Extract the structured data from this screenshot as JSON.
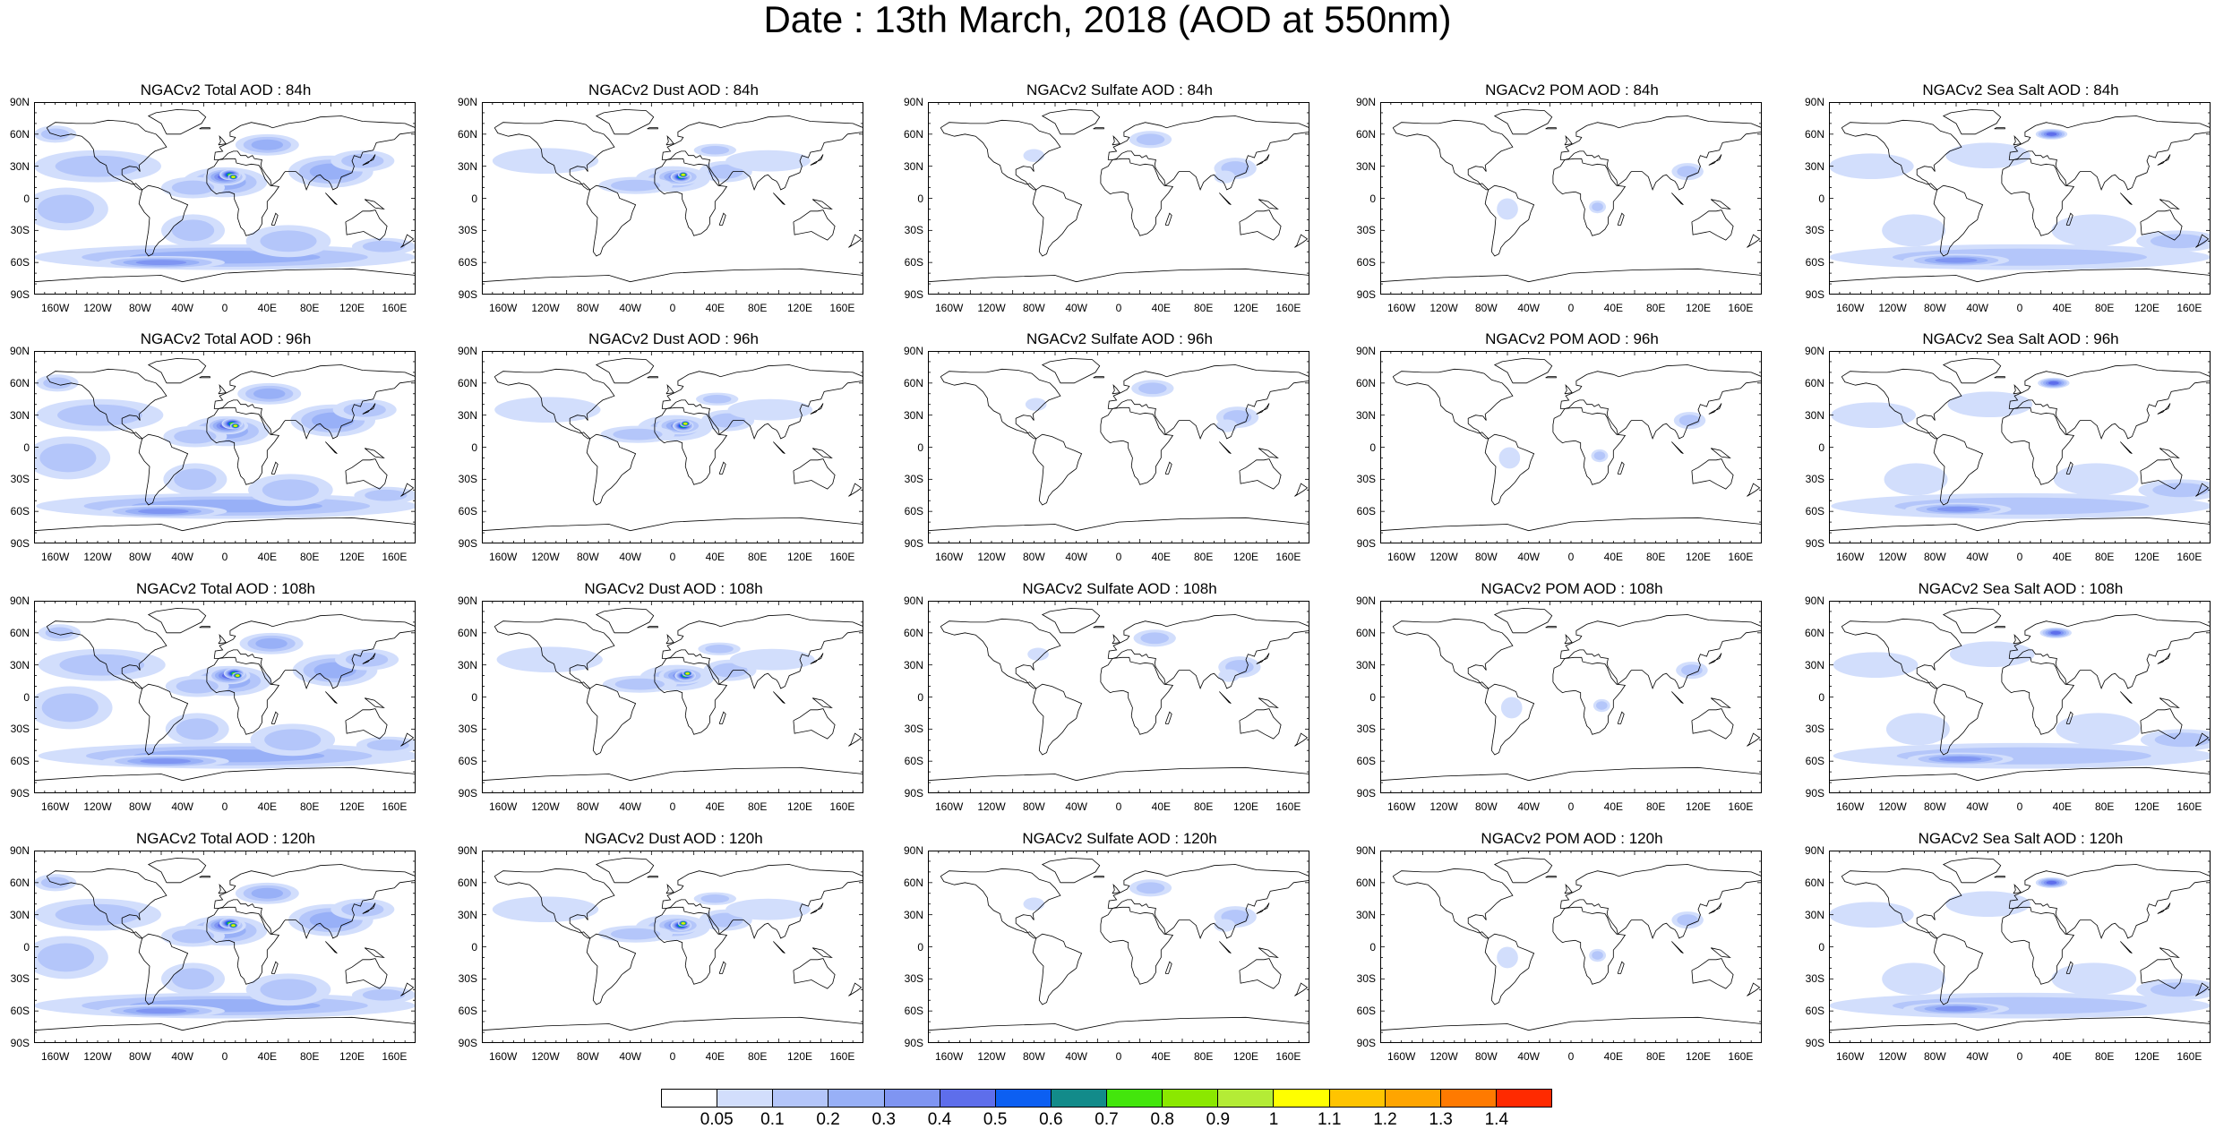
{
  "title": "Date : 13th March, 2018 (AOD at 550nm)",
  "panels": [
    [
      "NGACv2 Total AOD : 84h",
      "NGACv2 Dust AOD : 84h",
      "NGACv2 Sulfate AOD : 84h",
      "NGACv2 POM AOD : 84h",
      "NGACv2 Sea Salt AOD : 84h"
    ],
    [
      "NGACv2 Total AOD : 96h",
      "NGACv2 Dust AOD : 96h",
      "NGACv2 Sulfate AOD : 96h",
      "NGACv2 POM AOD : 96h",
      "NGACv2 Sea Salt AOD : 96h"
    ],
    [
      "NGACv2 Total AOD : 108h",
      "NGACv2 Dust AOD : 108h",
      "NGACv2 Sulfate AOD : 108h",
      "NGACv2 POM AOD : 108h",
      "NGACv2 Sea Salt AOD : 108h"
    ],
    [
      "NGACv2 Total AOD : 120h",
      "NGACv2 Dust AOD : 120h",
      "NGACv2 Sulfate AOD : 120h",
      "NGACv2 POM AOD : 120h",
      "NGACv2 Sea Salt  AOD : 120h"
    ]
  ],
  "y_ticks": [
    "90N",
    "60N",
    "30N",
    "0",
    "30S",
    "60S",
    "90S"
  ],
  "x_ticks": [
    "160W",
    "120W",
    "80W",
    "40W",
    "0",
    "40E",
    "80E",
    "120E",
    "160E"
  ],
  "colorbar": {
    "colors": [
      "#ffffff",
      "#d2defc",
      "#b4c6fa",
      "#98b0f7",
      "#7f95f2",
      "#5e6eeb",
      "#0c5ff2",
      "#128b8a",
      "#43e60c",
      "#8be800",
      "#b4ec36",
      "#ffff00",
      "#ffc400",
      "#ffa500",
      "#ff7a00",
      "#ff2a00"
    ],
    "labels": [
      "0.05",
      "0.1",
      "0.2",
      "0.3",
      "0.4",
      "0.5",
      "0.6",
      "0.7",
      "0.8",
      "0.9",
      "1",
      "1.1",
      "1.2",
      "1.3",
      "1.4"
    ]
  }
}
